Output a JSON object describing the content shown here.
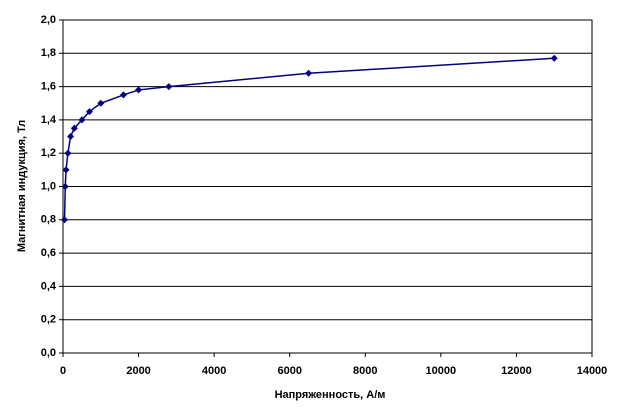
{
  "chart_data": {
    "type": "line",
    "x_label": "Напряженность, А/м",
    "y_label": "Магнитная индукция, Тл",
    "x": [
      40,
      60,
      80,
      130,
      200,
      300,
      500,
      700,
      1000,
      1600,
      2000,
      2800,
      6500,
      13000
    ],
    "values": [
      0.8,
      1.0,
      1.1,
      1.2,
      1.3,
      1.35,
      1.4,
      1.45,
      1.5,
      1.55,
      1.58,
      1.6,
      1.68,
      1.77
    ],
    "color": "#000080",
    "xlim": [
      0,
      14000
    ],
    "xticks": [
      0,
      2000,
      4000,
      6000,
      8000,
      10000,
      12000,
      14000
    ],
    "ylim": [
      0,
      2.0
    ],
    "yticks": [
      {
        "value": 0,
        "label": "0,0"
      },
      {
        "value": 0.2,
        "label": "0,2"
      },
      {
        "value": 0.4,
        "label": "0,4"
      },
      {
        "value": 0.6,
        "label": "0,6"
      },
      {
        "value": 0.8,
        "label": "0,8"
      },
      {
        "value": 1.0,
        "label": "1,0"
      },
      {
        "value": 1.2,
        "label": "1,2"
      },
      {
        "value": 1.4,
        "label": "1,4"
      },
      {
        "value": 1.6,
        "label": "1,6"
      },
      {
        "value": 1.8,
        "label": "1,8"
      },
      {
        "value": 2.0,
        "label": "2,0"
      }
    ],
    "grid": true
  }
}
